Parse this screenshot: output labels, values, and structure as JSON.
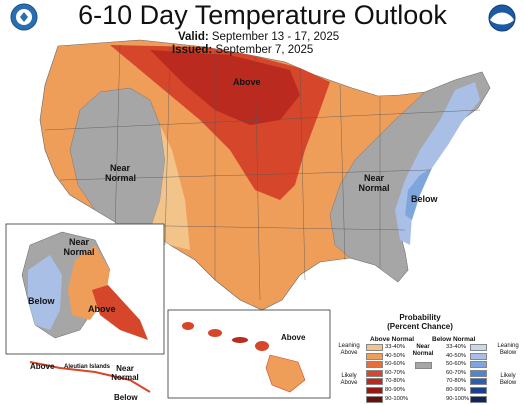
{
  "header": {
    "title": "6-10 Day Temperature Outlook",
    "valid_label": "Valid:",
    "valid_value": "September 13 - 17, 2025",
    "issued_label": "Issued:",
    "issued_value": "September 7, 2025"
  },
  "logos": {
    "left": {
      "icon": "commerce-seal-icon",
      "color": "#2a6eb2"
    },
    "right": {
      "icon": "noaa-logo-icon",
      "color": "#1b5aa5",
      "text": "NOAA"
    }
  },
  "map_labels": {
    "conus_above": "Above",
    "conus_west_near": "Near",
    "conus_west_normal": "Normal",
    "conus_east_near": "Near",
    "conus_east_normal": "Normal",
    "conus_below": "Below",
    "alaska_near": "Near",
    "alaska_normal": "Normal",
    "alaska_below": "Below",
    "alaska_above": "Above",
    "aleutian_above": "Above",
    "aleutian_islands": "Aleutian Islands",
    "aleutian_near": "Near",
    "aleutian_normal": "Normal",
    "aleutian_below": "Below",
    "hawaii_above": "Above"
  },
  "legend": {
    "title_line1": "Probability",
    "title_line2": "(Percent Chance)",
    "above_header": "Above Normal",
    "below_header": "Below Normal",
    "near_label_1": "Near",
    "near_label_2": "Normal",
    "leaning_above_1": "Leaning",
    "leaning_above_2": "Above",
    "likely_above_1": "Likely",
    "likely_above_2": "Above",
    "leaning_below_1": "Leaning",
    "leaning_below_2": "Below",
    "likely_below_1": "Likely",
    "likely_below_2": "Below",
    "above_rows": [
      "33-40%",
      "40-50%",
      "50-60%",
      "60-70%",
      "70-80%",
      "80-90%",
      "90-100%"
    ],
    "below_rows": [
      "33-40%",
      "40-50%",
      "50-60%",
      "60-70%",
      "70-80%",
      "80-90%",
      "90-100%"
    ],
    "above_colors": [
      "#f2c48a",
      "#ef9e5a",
      "#e66f3a",
      "#d5462a",
      "#bb2a1e",
      "#921a12",
      "#6a0f0a"
    ],
    "below_colors": [
      "#c9d6ee",
      "#a9bfe6",
      "#7fa6dc",
      "#4c86cf",
      "#2a5fb4",
      "#1c3e8c",
      "#12245e"
    ],
    "near_color": "#a6a6a6"
  }
}
